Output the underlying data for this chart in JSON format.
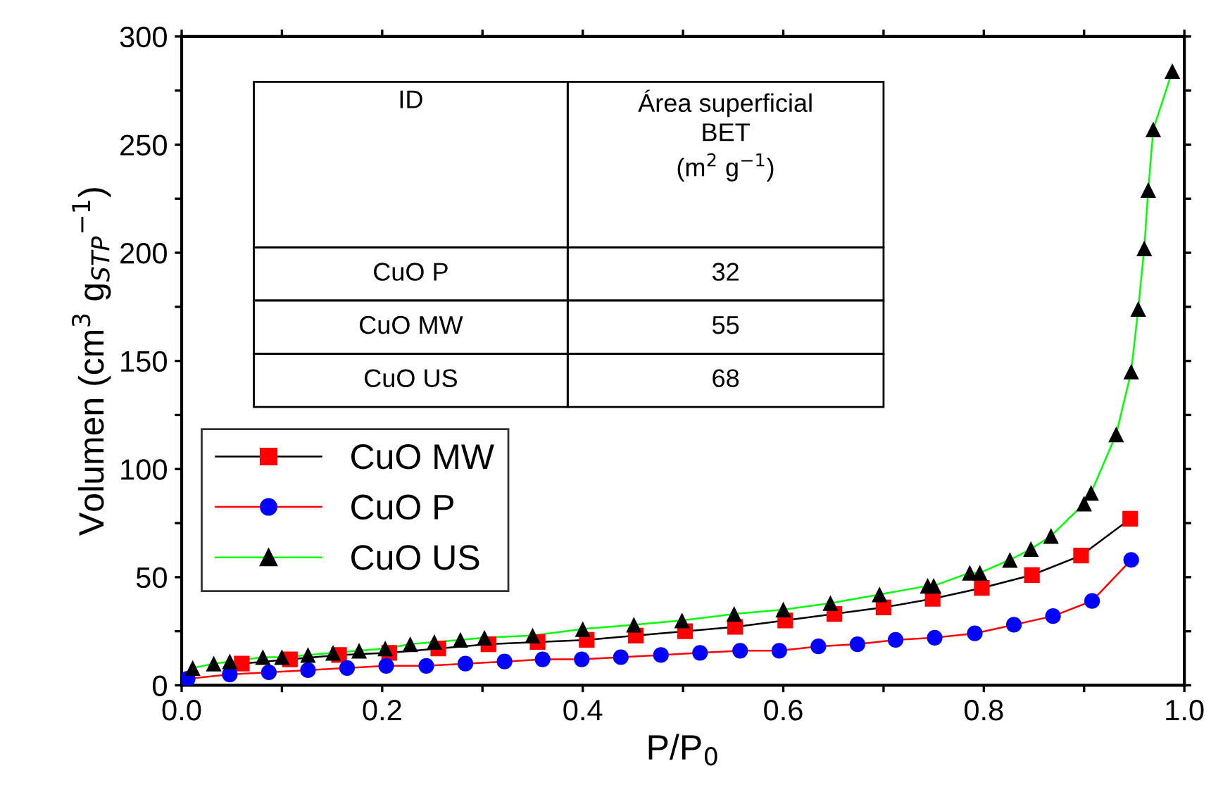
{
  "chart_data": {
    "type": "line",
    "xlabel": "P/P$_{0}$",
    "ylabel": "Volumen (cm$^{3}$ g$_{STP}$$^{−1}$)",
    "xlim": [
      0.0,
      1.0
    ],
    "ylim": [
      0,
      300
    ],
    "xticks": [
      {
        "value": 0.0,
        "label": "0.0"
      },
      {
        "value": 0.1,
        "label": null
      },
      {
        "value": 0.2,
        "label": "0.2"
      },
      {
        "value": 0.3,
        "label": null
      },
      {
        "value": 0.4,
        "label": "0.4"
      },
      {
        "value": 0.5,
        "label": null
      },
      {
        "value": 0.6,
        "label": "0.6"
      },
      {
        "value": 0.7,
        "label": null
      },
      {
        "value": 0.8,
        "label": "0.8"
      },
      {
        "value": 0.9,
        "label": null
      },
      {
        "value": 1.0,
        "label": "1.0"
      }
    ],
    "yticks": [
      0,
      {
        "value": 25,
        "label": null
      },
      50,
      {
        "value": 75,
        "label": null
      },
      100,
      {
        "value": 125,
        "label": null
      },
      150,
      {
        "value": 175,
        "label": null
      },
      200,
      {
        "value": 225,
        "label": null
      },
      250,
      {
        "value": 275,
        "label": null
      },
      300
    ],
    "grid": false,
    "legend": "left",
    "line_style": "solid",
    "series": [
      {
        "name": "CuO MW",
        "color": "#000000",
        "colors": [
          "#ff0000",
          "#ff0000",
          "#ff0000",
          "#ff0000",
          "#ff0000",
          "#ff0000",
          "#ff0000",
          "#ff0000",
          "#ff0000",
          "#ff0000",
          "#ff0000",
          "#ff0000",
          "#ff0000",
          "#ff0000",
          "#ff0000",
          "#ff0000",
          "#ff0000",
          "#ff0000",
          "#ff0000"
        ],
        "marker": "square",
        "x": [
          0.06,
          0.108,
          0.157,
          0.207,
          0.256,
          0.306,
          0.355,
          0.404,
          0.453,
          0.502,
          0.552,
          0.602,
          0.651,
          0.7,
          0.749,
          0.798,
          0.848,
          0.897,
          0.946
        ],
        "values": [
          10,
          12,
          14,
          15,
          17,
          19,
          20,
          21,
          23,
          25,
          27,
          30,
          33,
          36,
          40,
          45,
          51,
          60,
          77
        ]
      },
      {
        "name": "CuO P",
        "color": "#ff0000",
        "colors": [
          "#0000ff",
          "#0000ff",
          "#0000ff",
          "#0000ff",
          "#0000ff",
          "#0000ff",
          "#0000ff",
          "#0000ff",
          "#0000ff",
          "#0000ff",
          "#0000ff",
          "#0000ff",
          "#0000ff",
          "#0000ff",
          "#0000ff",
          "#0000ff",
          "#0000ff",
          "#0000ff",
          "#0000ff",
          "#0000ff",
          "#0000ff",
          "#0000ff",
          "#0000ff",
          "#0000ff",
          "#0000ff"
        ],
        "marker": "circle",
        "x": [
          0.006,
          0.048,
          0.087,
          0.126,
          0.165,
          0.204,
          0.244,
          0.283,
          0.322,
          0.36,
          0.399,
          0.438,
          0.478,
          0.517,
          0.557,
          0.596,
          0.635,
          0.674,
          0.712,
          0.751,
          0.791,
          0.83,
          0.869,
          0.908,
          0.947
        ],
        "values": [
          3,
          5,
          6,
          7,
          8,
          9,
          9,
          10,
          11,
          12,
          12,
          13,
          14,
          15,
          16,
          16,
          18,
          19,
          21,
          22,
          24,
          28,
          32,
          39,
          58
        ]
      },
      {
        "name": "CuO US",
        "color": "#00ff00",
        "colors": [
          "#000000",
          "#000000",
          "#000000",
          "#000000",
          "#000000",
          "#000000",
          "#000000",
          "#000000",
          "#000000",
          "#000000",
          "#000000",
          "#000000",
          "#000000",
          "#000000",
          "#000000",
          "#000000",
          "#000000",
          "#000000",
          "#000000",
          "#000000",
          "#000000",
          "#000000",
          "#000000",
          "#000000",
          "#000000",
          "#000000",
          "#000000",
          "#000000",
          "#000000",
          "#000000",
          "#000000",
          "#000000",
          "#000000",
          "#000000",
          "#000000",
          "#000000",
          "#000000"
        ],
        "marker": "triangle",
        "x": [
          0.011,
          0.032,
          0.048,
          0.081,
          0.1,
          0.126,
          0.151,
          0.177,
          0.203,
          0.228,
          0.252,
          0.278,
          0.302,
          0.35,
          0.4,
          0.451,
          0.499,
          0.551,
          0.6,
          0.647,
          0.696,
          0.744,
          0.75,
          0.786,
          0.796,
          0.826,
          0.847,
          0.867,
          0.9,
          0.907,
          0.932,
          0.947,
          0.954,
          0.96,
          0.964,
          0.969,
          0.988
        ],
        "values": [
          8,
          10,
          11,
          13,
          13,
          14,
          15,
          16,
          17,
          19,
          20,
          21,
          22,
          23,
          26,
          28,
          30,
          33,
          35,
          38,
          42,
          46,
          46,
          52,
          52,
          58,
          63,
          69,
          84,
          89,
          116,
          145,
          174,
          202,
          229,
          257,
          284
        ]
      }
    ],
    "annotations": [
      "ID",
      "Área superficial\nBET\n(m$^{2}$ g$^{−1}$)",
      "CuO P",
      "32",
      "CuO MW",
      "55",
      "CuO US",
      "68"
    ]
  }
}
